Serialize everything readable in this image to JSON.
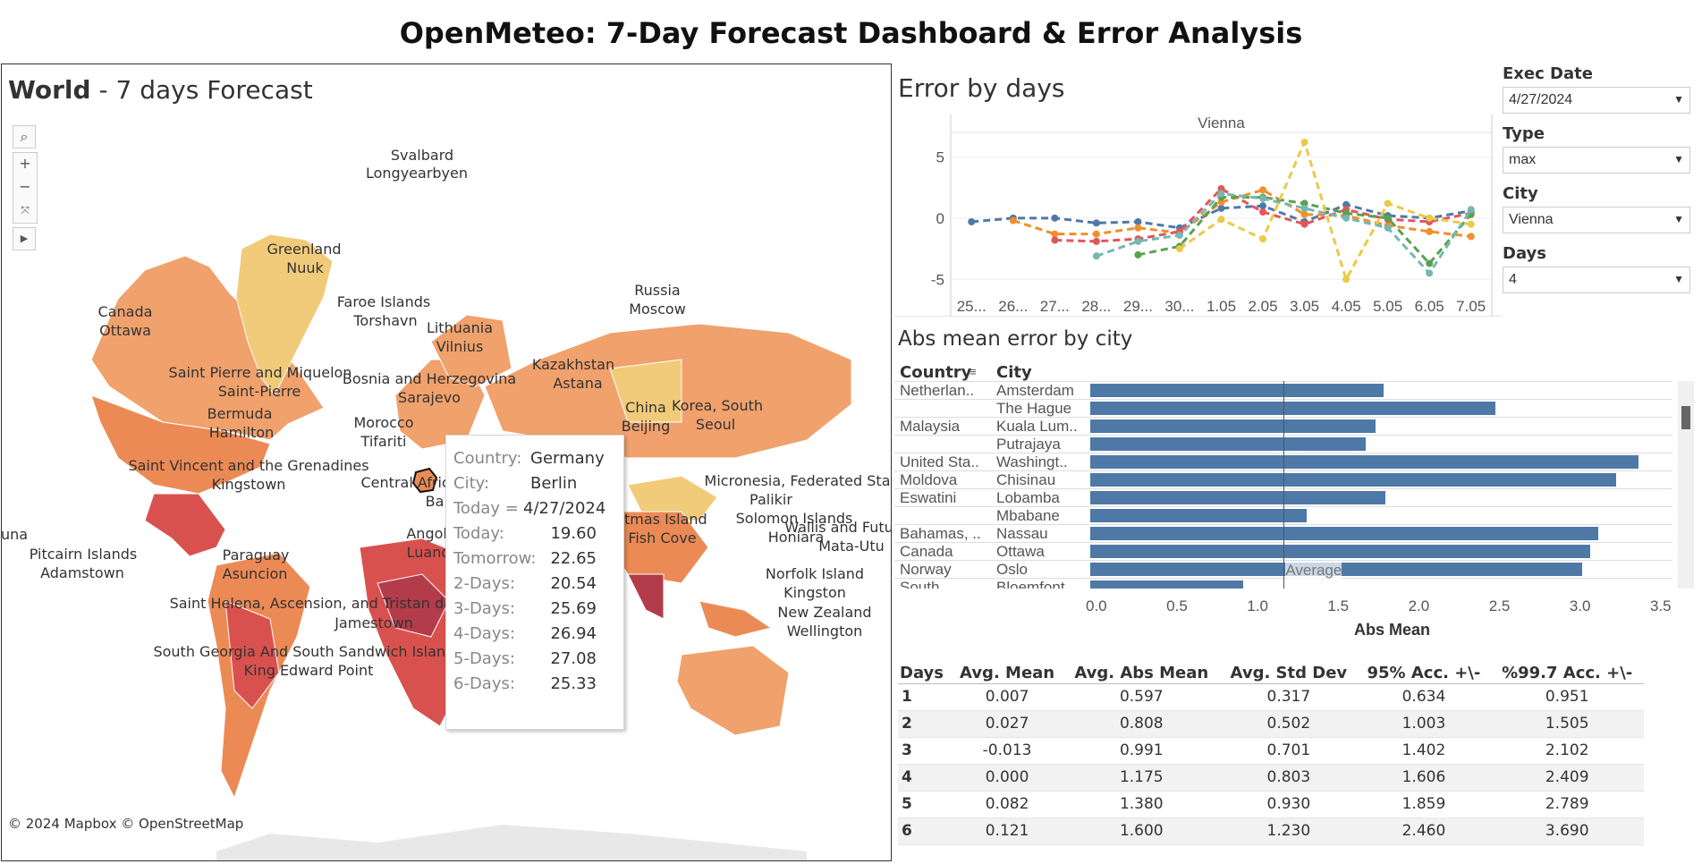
{
  "title": "OpenMeteo: 7-Day Forecast Dashboard & Error Analysis",
  "map": {
    "title_bold": "World",
    "title_rest": " - 7 days Forecast",
    "copyright": "© 2024 Mapbox © OpenStreetMap",
    "labels": [
      "Svalbard",
      "Longyearbyen",
      "Greenland",
      "Nuuk",
      "Canada",
      "Ottawa",
      "Russia",
      "Moscow",
      "Faroe Islands",
      "Torshavn",
      "Lithuania",
      "Vilnius",
      "Kazakhstan",
      "Astana",
      "Saint Pierre and Miquelon",
      "Saint-Pierre",
      "Bosnia and Herzegovina",
      "Sarajevo",
      "Bermuda",
      "Hamilton",
      "Morocco",
      "Tifariti",
      "China",
      "Beijing",
      "Korea, South",
      "Seoul",
      "Saint Vincent and the Grenadines",
      "Kingstown",
      "Central Africa",
      "Micronesia, Federated States of",
      "Palikir",
      "Solomon Islands",
      "Honiara",
      "Wallis and Futuna",
      "Mata-Utu",
      "Christmas Island",
      "Flying Fish Cove",
      "Pitcairn Islands",
      "Adamstown",
      "Paraguay",
      "Asuncion",
      "Angola",
      "Luanda",
      "Norfolk Island",
      "Kingston",
      "Saint Helena, Ascension, and Tristan da Cunha",
      "Jamestown",
      "New Zealand",
      "Wellington",
      "South Georgia And South Sandwich Islands",
      "King Edward Point",
      "una",
      "Ba"
    ],
    "tooltip": {
      "country_label": "Country:",
      "country": "Germany",
      "city_label": "City:",
      "city": "Berlin",
      "today_label": "Today =",
      "today": "4/27/2024",
      "rows": [
        {
          "k": "Today:",
          "v": "19.60"
        },
        {
          "k": "Tomorrow:",
          "v": "22.65"
        },
        {
          "k": "2-Days:",
          "v": "20.54"
        },
        {
          "k": "3-Days:",
          "v": "25.69"
        },
        {
          "k": "4-Days:",
          "v": "26.94"
        },
        {
          "k": "5-Days:",
          "v": "27.08"
        },
        {
          "k": "6-Days:",
          "v": "25.33"
        }
      ]
    },
    "colors": {
      "light": "#f1cb7a",
      "mid": "#f0a16c",
      "orange": "#ec8a55",
      "red": "#d9514e",
      "dark": "#b33c4a"
    }
  },
  "error_by_days": {
    "title": "Error by days"
  },
  "filters": [
    {
      "label": "Exec Date",
      "value": "4/27/2024"
    },
    {
      "label": "Type",
      "value": "max"
    },
    {
      "label": "City",
      "value": "Vienna"
    },
    {
      "label": "Days",
      "value": "4"
    }
  ],
  "abs_mean": {
    "title": "Abs mean error by city",
    "col_country": "Country",
    "col_city": "City",
    "avg_label": "Average",
    "axis_title": "Abs Mean"
  },
  "stats": {
    "headers": [
      "Days",
      "Avg. Mean",
      "Avg. Abs Mean",
      "Avg. Std Dev",
      "95% Acc. +\\-",
      "%99.7 Acc. +\\-"
    ],
    "rows": [
      [
        "1",
        "0.007",
        "0.597",
        "0.317",
        "0.634",
        "0.951"
      ],
      [
        "2",
        "0.027",
        "0.808",
        "0.502",
        "1.003",
        "1.505"
      ],
      [
        "3",
        "-0.013",
        "0.991",
        "0.701",
        "1.402",
        "2.102"
      ],
      [
        "4",
        "0.000",
        "1.175",
        "0.803",
        "1.606",
        "2.409"
      ],
      [
        "5",
        "0.082",
        "1.380",
        "0.930",
        "1.859",
        "2.789"
      ],
      [
        "6",
        "0.121",
        "1.600",
        "1.230",
        "2.460",
        "3.690"
      ]
    ]
  },
  "chart_data": [
    {
      "type": "line",
      "title": "Vienna",
      "categories": [
        "25...",
        "26...",
        "27...",
        "28...",
        "29...",
        "30...",
        "1.05",
        "2.05",
        "3.05",
        "4.05",
        "5.05",
        "6.05",
        "7.05"
      ],
      "ylim": [
        -6,
        7
      ],
      "yticks": [
        5,
        0,
        -5
      ],
      "series": [
        {
          "color": "#4e79a7",
          "values": [
            -0.3,
            0,
            0,
            -0.4,
            -0.3,
            -0.8,
            0.8,
            1.0,
            -0.3,
            1.1,
            0.2,
            0,
            0.6
          ]
        },
        {
          "color": "#f28e2b",
          "values": [
            null,
            -0.2,
            -1.3,
            -1.3,
            -0.8,
            -1.2,
            1.3,
            2.3,
            0.3,
            0.2,
            -0.6,
            -1.1,
            -1.5
          ]
        },
        {
          "color": "#e15759",
          "values": [
            null,
            null,
            -1.8,
            -1.9,
            -1.7,
            -1.1,
            2.4,
            0.5,
            -0.5,
            0.7,
            -0.1,
            -0.3,
            0.4
          ]
        },
        {
          "color": "#59a14f",
          "values": [
            null,
            null,
            null,
            null,
            -3.0,
            -2.3,
            1.7,
            1.7,
            1.2,
            0.4,
            0.0,
            -3.7,
            0.3
          ]
        },
        {
          "color": "#edc948",
          "values": [
            null,
            null,
            null,
            null,
            null,
            -2.5,
            -0.1,
            -1.7,
            6.2,
            -5.0,
            1.2,
            0.0,
            -0.5
          ]
        },
        {
          "color": "#76b7b2",
          "values": [
            null,
            null,
            null,
            -3.1,
            -1.9,
            -1.4,
            2.0,
            1.6,
            0.8,
            0.0,
            -0.8,
            -4.5,
            0.7
          ]
        }
      ]
    },
    {
      "type": "bar",
      "title": "Abs mean error by city",
      "xlabel": "Abs Mean",
      "xlim": [
        0,
        3.55
      ],
      "xticks": [
        "0.0",
        "0.5",
        "1.0",
        "1.5",
        "2.0",
        "2.5",
        "3.0",
        "3.5"
      ],
      "average": 1.2,
      "rows": [
        {
          "country": "Netherlan..",
          "city": "Amsterdam",
          "value": 1.82
        },
        {
          "country": "",
          "city": "The Hague",
          "value": 2.51
        },
        {
          "country": "Malaysia",
          "city": "Kuala Lum..",
          "value": 1.77
        },
        {
          "country": "",
          "city": "Putrajaya",
          "value": 1.71
        },
        {
          "country": "United Sta..",
          "city": "Washingt..",
          "value": 3.4
        },
        {
          "country": "Moldova",
          "city": "Chisinau",
          "value": 3.26
        },
        {
          "country": "Eswatini",
          "city": "Lobamba",
          "value": 1.83
        },
        {
          "country": "",
          "city": "Mbabane",
          "value": 1.34
        },
        {
          "country": "Bahamas, ..",
          "city": "Nassau",
          "value": 3.15
        },
        {
          "country": "Canada",
          "city": "Ottawa",
          "value": 3.1
        },
        {
          "country": "Norway",
          "city": "Oslo",
          "value": 3.05
        },
        {
          "country": "South ..",
          "city": "Bloemfont..",
          "value": 0.95
        }
      ]
    }
  ]
}
